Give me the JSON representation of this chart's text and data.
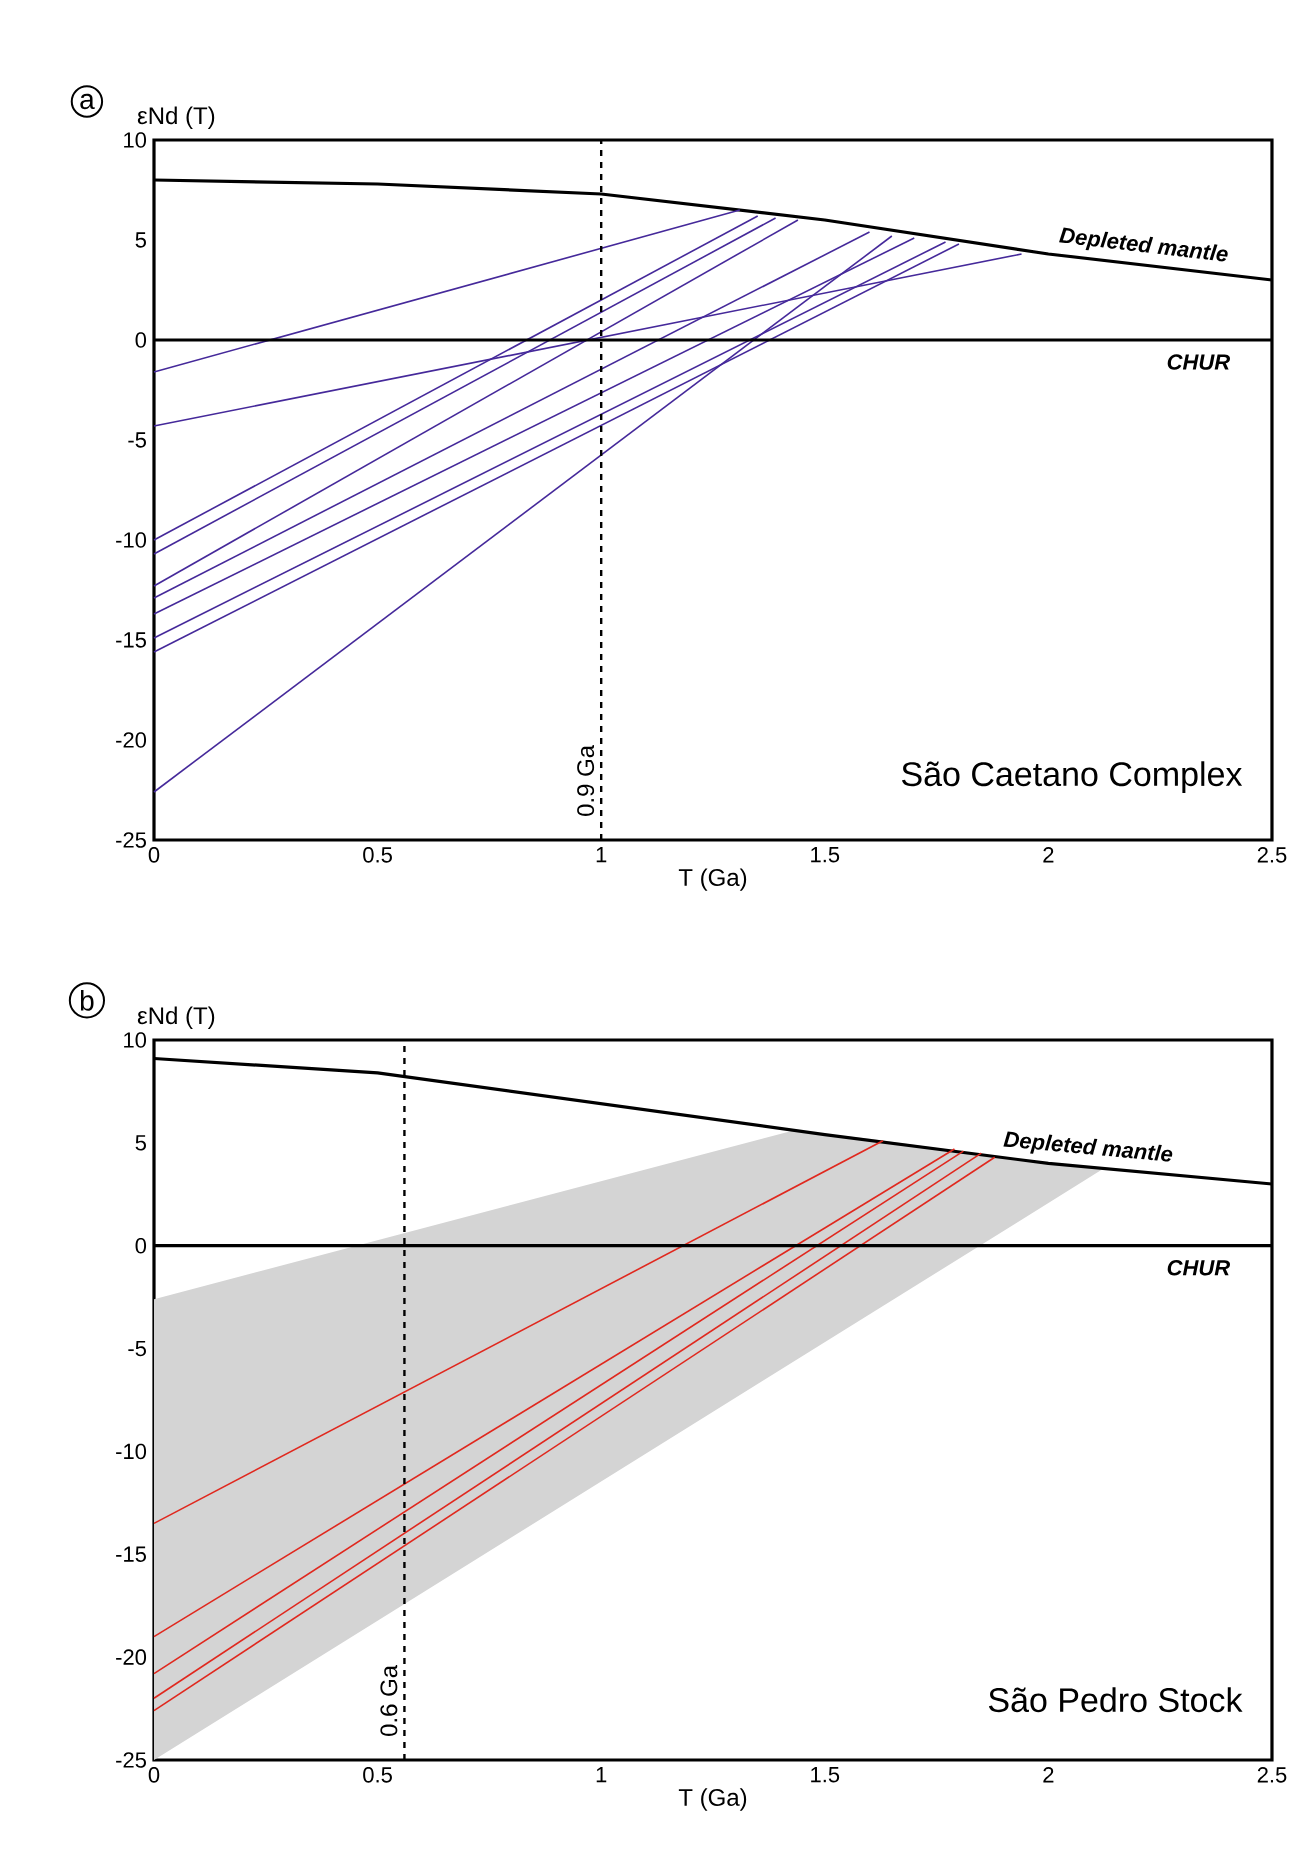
{
  "chart_data": [
    {
      "type": "line",
      "title": "São Caetano Complex",
      "xlabel": "T (Ga)",
      "ylabel": "εNd (T)",
      "annotations": [
        "a"
      ],
      "xlim": [
        0,
        2.5
      ],
      "ylim": [
        -25,
        10
      ],
      "xticks": [
        0,
        0.5,
        1,
        1.5,
        2,
        2.5
      ],
      "yticks": [
        -25,
        -20,
        -15,
        -10,
        -5,
        0,
        5,
        10
      ],
      "ref_lines": [
        {
          "axis": "y",
          "value": 0,
          "label": "CHUR",
          "color": "#000000"
        },
        {
          "axis": "x",
          "value": 1.0,
          "label": "0.9 Ga",
          "color": "#000000",
          "line_style": "dashed"
        }
      ],
      "series": [
        {
          "name": "Depleted mantle",
          "color": "#000000",
          "x": [
            0,
            0.5,
            1,
            1.5,
            2,
            2.5
          ],
          "values": [
            8.0,
            7.8,
            7.3,
            6.0,
            4.3,
            3.0
          ]
        },
        {
          "color": "#45299a",
          "x": [
            0,
            1.31
          ],
          "values": [
            -1.6,
            6.5
          ]
        },
        {
          "color": "#45299a",
          "x": [
            0,
            1.35
          ],
          "values": [
            -10.0,
            6.2
          ]
        },
        {
          "color": "#45299a",
          "x": [
            0,
            1.39
          ],
          "values": [
            -10.7,
            6.1
          ]
        },
        {
          "color": "#45299a",
          "x": [
            0,
            1.44
          ],
          "values": [
            -12.3,
            6.0
          ]
        },
        {
          "color": "#45299a",
          "x": [
            0,
            1.6
          ],
          "values": [
            -12.9,
            5.4
          ]
        },
        {
          "color": "#45299a",
          "x": [
            0,
            1.65
          ],
          "values": [
            -22.6,
            5.2
          ]
        },
        {
          "color": "#45299a",
          "x": [
            0,
            1.7
          ],
          "values": [
            -13.7,
            5.1
          ]
        },
        {
          "color": "#45299a",
          "x": [
            0,
            1.77
          ],
          "values": [
            -14.9,
            4.9
          ]
        },
        {
          "color": "#45299a",
          "x": [
            0,
            1.8
          ],
          "values": [
            -15.6,
            4.8
          ]
        },
        {
          "color": "#45299a",
          "x": [
            0,
            1.94
          ],
          "values": [
            -4.3,
            4.3
          ]
        }
      ]
    },
    {
      "type": "line",
      "title": "São Pedro Stock",
      "xlabel": "T (Ga)",
      "ylabel": "εNd (T)",
      "annotations": [
        "b"
      ],
      "xlim": [
        0,
        2.5
      ],
      "ylim": [
        -25,
        10
      ],
      "xticks": [
        0,
        0.5,
        1,
        1.5,
        2,
        2.5
      ],
      "yticks": [
        -25,
        -20,
        -15,
        -10,
        -5,
        0,
        5,
        10
      ],
      "ref_lines": [
        {
          "axis": "y",
          "value": 0,
          "label": "CHUR",
          "color": "#000000"
        },
        {
          "axis": "x",
          "value": 0.56,
          "label": "0.6 Ga",
          "color": "#000000",
          "line_style": "dashed"
        }
      ],
      "series": [
        {
          "type": "area",
          "color": "#d4d4d4",
          "x": [
            0,
            1.43,
            1.6,
            1.8,
            2.0,
            2.12,
            0
          ],
          "values": [
            -2.6,
            5.6,
            5.2,
            4.6,
            4.0,
            3.7,
            -25
          ]
        },
        {
          "name": "Depleted mantle",
          "color": "#000000",
          "x": [
            0,
            0.5,
            1,
            1.5,
            2,
            2.5
          ],
          "values": [
            9.1,
            8.4,
            6.9,
            5.4,
            4.0,
            3.0
          ]
        },
        {
          "color": "#e0281e",
          "x": [
            0,
            1.63
          ],
          "values": [
            -13.5,
            5.1
          ]
        },
        {
          "color": "#e0281e",
          "x": [
            0,
            1.79
          ],
          "values": [
            -19.0,
            4.7
          ]
        },
        {
          "color": "#e0281e",
          "x": [
            0,
            1.81
          ],
          "values": [
            -20.8,
            4.6
          ]
        },
        {
          "color": "#e0281e",
          "x": [
            0,
            1.85
          ],
          "values": [
            -22.0,
            4.5
          ]
        },
        {
          "color": "#e0281e",
          "x": [
            0,
            1.88
          ],
          "values": [
            -22.6,
            4.3
          ]
        }
      ]
    }
  ]
}
